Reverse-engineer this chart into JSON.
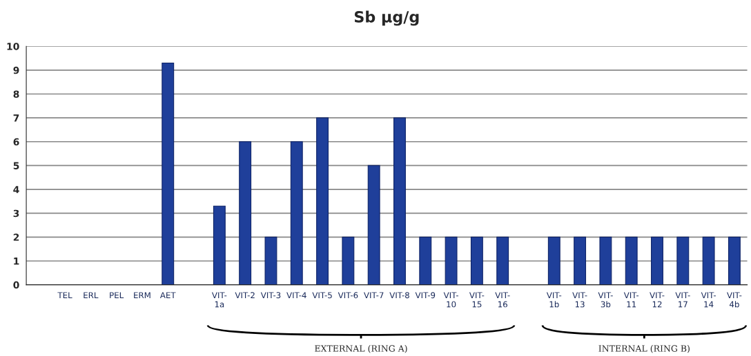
{
  "chart_data": {
    "type": "bar",
    "title": "Sb µg/g",
    "categories": [
      null,
      "TEL",
      "ERL",
      "PEL",
      "ERM",
      "AET",
      null,
      "VIT-\n1a",
      "VIT-2",
      "VIT-3",
      "VIT-4",
      "VIT-5",
      "VIT-6",
      "VIT-7",
      "VIT-8",
      "VIT-9",
      "VIT-\n10",
      "VIT-\n15",
      "VIT-\n16",
      null,
      "VIT-\n1b",
      "VIT-\n13",
      "VIT-\n3b",
      "VIT-\n11",
      "VIT-\n12",
      "VIT-\n17",
      "VIT-\n14",
      "VIT-\n4b"
    ],
    "values": [
      null,
      null,
      null,
      null,
      null,
      9.3,
      null,
      3.3,
      6,
      2,
      6,
      7,
      2,
      5,
      7,
      2,
      2,
      2,
      2,
      null,
      2,
      2,
      2,
      2,
      2,
      2,
      2,
      2
    ],
    "color": "#1f3f9a",
    "ylim": [
      0,
      10
    ],
    "yticks": [
      0,
      1,
      2,
      3,
      4,
      5,
      6,
      7,
      8,
      9,
      10
    ],
    "grid": "y",
    "annotations": [
      "EXTERNAL (RING A)",
      "INTERNAL (RING B)"
    ]
  }
}
